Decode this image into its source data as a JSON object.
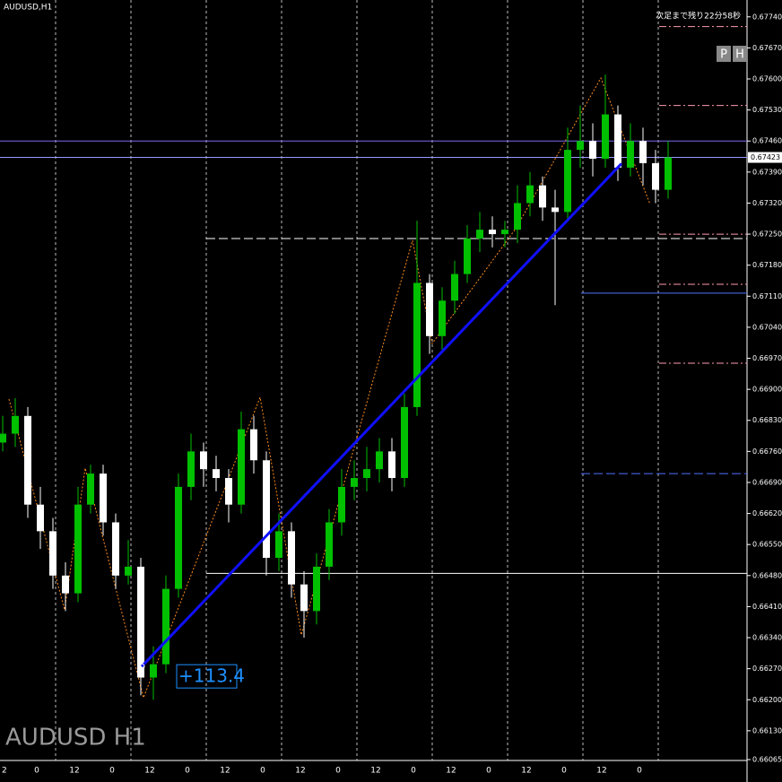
{
  "chart_data": {
    "type": "candlestick",
    "symbol_label": "AUDUSD,H1",
    "watermark": "AUDUSD H1",
    "countdown": "次足まで残り22分58秒",
    "buttons": [
      "P",
      "H"
    ],
    "up_color": "#00c000",
    "down_color": "#ffffff",
    "open": [
      0.6678,
      0.668,
      0.6684,
      0.6664,
      0.6658,
      0.6648,
      0.6644,
      0.6664,
      0.6671,
      0.666,
      0.6648,
      0.665,
      0.6625,
      0.6628,
      0.6645,
      0.6668,
      0.6676,
      0.6672,
      0.667,
      0.6664,
      0.6681,
      0.6674,
      0.6652,
      0.6658,
      0.6646,
      0.664,
      0.665,
      0.666,
      0.6668,
      0.667,
      0.6672,
      0.6676,
      0.667,
      0.6686,
      0.6714,
      0.6702,
      0.671,
      0.6716,
      0.6724,
      0.6726,
      0.6725,
      0.6726,
      0.6732,
      0.6736,
      0.6731,
      0.673,
      0.6744,
      0.6746,
      0.6742,
      0.6752,
      0.674,
      0.6746,
      0.6741,
      0.6735
    ],
    "high": [
      0.6684,
      0.6688,
      0.6686,
      0.6668,
      0.6661,
      0.6651,
      0.6668,
      0.6673,
      0.6673,
      0.6662,
      0.6656,
      0.6652,
      0.6632,
      0.6648,
      0.6671,
      0.668,
      0.6678,
      0.6675,
      0.6672,
      0.6685,
      0.6684,
      0.6676,
      0.6662,
      0.666,
      0.6649,
      0.6653,
      0.6663,
      0.6672,
      0.6674,
      0.6677,
      0.6679,
      0.6679,
      0.6689,
      0.6728,
      0.6716,
      0.6713,
      0.6719,
      0.6727,
      0.673,
      0.6729,
      0.6728,
      0.6736,
      0.6739,
      0.6738,
      0.6735,
      0.6749,
      0.6754,
      0.675,
      0.6761,
      0.6754,
      0.675,
      0.6749,
      0.6744,
      0.6746
    ],
    "low": [
      0.6676,
      0.6677,
      0.6661,
      0.6654,
      0.6645,
      0.664,
      0.6642,
      0.6662,
      0.6657,
      0.6645,
      0.6646,
      0.6621,
      0.662,
      0.6626,
      0.6643,
      0.6665,
      0.6668,
      0.6667,
      0.666,
      0.6662,
      0.6671,
      0.6648,
      0.6649,
      0.6643,
      0.6634,
      0.6637,
      0.6647,
      0.6657,
      0.6665,
      0.6667,
      0.6669,
      0.6667,
      0.6668,
      0.6684,
      0.6698,
      0.6699,
      0.6707,
      0.6714,
      0.6721,
      0.6722,
      0.6722,
      0.6723,
      0.6729,
      0.6728,
      0.6709,
      0.6728,
      0.674,
      0.6738,
      0.674,
      0.6737,
      0.6738,
      0.6736,
      0.6732,
      0.6733
    ],
    "close": [
      0.668,
      0.6684,
      0.6664,
      0.6658,
      0.6648,
      0.6644,
      0.6664,
      0.6671,
      0.666,
      0.6648,
      0.665,
      0.6625,
      0.6628,
      0.6645,
      0.6668,
      0.6676,
      0.6672,
      0.667,
      0.6664,
      0.6681,
      0.6674,
      0.6652,
      0.6658,
      0.6646,
      0.664,
      0.665,
      0.666,
      0.6668,
      0.667,
      0.6672,
      0.6676,
      0.667,
      0.6686,
      0.6714,
      0.6702,
      0.671,
      0.6716,
      0.6724,
      0.6726,
      0.6725,
      0.6726,
      0.6732,
      0.6736,
      0.6731,
      0.673,
      0.6744,
      0.6746,
      0.6742,
      0.6752,
      0.674,
      0.6746,
      0.6741,
      0.6735,
      0.67423
    ],
    "current_price": 0.67423,
    "ylim": [
      0.66063,
      0.67778
    ],
    "yticks": [
      {
        "value": 0.6774,
        "label": "0.67740"
      },
      {
        "value": 0.6767,
        "label": "0.67670"
      },
      {
        "value": 0.676,
        "label": "0.67600"
      },
      {
        "value": 0.6753,
        "label": "0.67530"
      },
      {
        "value": 0.6746,
        "label": "0.67460"
      },
      {
        "value": 0.6739,
        "label": "0.67390"
      },
      {
        "value": 0.6732,
        "label": "0.67320"
      },
      {
        "value": 0.6725,
        "label": "0.67250"
      },
      {
        "value": 0.6718,
        "label": "0.67180"
      },
      {
        "value": 0.6711,
        "label": "0.67110"
      },
      {
        "value": 0.6704,
        "label": "0.67040"
      },
      {
        "value": 0.6697,
        "label": "0.66970"
      },
      {
        "value": 0.669,
        "label": "0.66900"
      },
      {
        "value": 0.6683,
        "label": "0.66830"
      },
      {
        "value": 0.6676,
        "label": "0.66760"
      },
      {
        "value": 0.6669,
        "label": "0.66690"
      },
      {
        "value": 0.6662,
        "label": "0.66620"
      },
      {
        "value": 0.6655,
        "label": "0.66550"
      },
      {
        "value": 0.6648,
        "label": "0.66480"
      },
      {
        "value": 0.6641,
        "label": "0.66410"
      },
      {
        "value": 0.6634,
        "label": "0.66340"
      },
      {
        "value": 0.6627,
        "label": "0.66270"
      },
      {
        "value": 0.662,
        "label": "0.66200"
      },
      {
        "value": 0.6613,
        "label": "0.66130"
      },
      0.66065
    ],
    "x_labels": [
      "2",
      "0",
      "12",
      "0",
      "12",
      "0",
      "12",
      "0",
      "12",
      "0",
      "12",
      "0",
      "12",
      "0",
      "12",
      "0",
      "12",
      "0"
    ],
    "levels": [
      {
        "price": 0.6746,
        "color": "#7b68ee",
        "style": "solid",
        "start": "left"
      },
      {
        "price": 0.67423,
        "color": "#9a9aff",
        "style": "solid",
        "start": "left"
      },
      {
        "price": 0.6724,
        "color": "#ffffff",
        "style": "dashed",
        "start": "mid"
      },
      {
        "price": 0.66485,
        "color": "#ffffff",
        "style": "solid",
        "start": "mid"
      },
      {
        "price": 0.67117,
        "color": "#4f6fff",
        "style": "solid",
        "start": "right"
      },
      {
        "price": 0.6671,
        "color": "#4f6fff",
        "style": "dashed",
        "start": "right"
      },
      {
        "price": 0.67718,
        "color": "#ff9ab0",
        "style": "dashed",
        "start": "edge"
      },
      {
        "price": 0.6754,
        "color": "#ff9ab0",
        "style": "dashed",
        "start": "edge"
      },
      {
        "price": 0.6725,
        "color": "#ff9ab0",
        "style": "dashed",
        "start": "edge"
      },
      {
        "price": 0.67137,
        "color": "#ff9ab0",
        "style": "dashed",
        "start": "edge"
      },
      {
        "price": 0.66959,
        "color": "#ff9ab0",
        "style": "dashed",
        "start": "edge"
      }
    ],
    "trend_line": {
      "start": 0.66275,
      "end": 0.67409,
      "label": "+113.4",
      "color": "#1010ff"
    }
  }
}
